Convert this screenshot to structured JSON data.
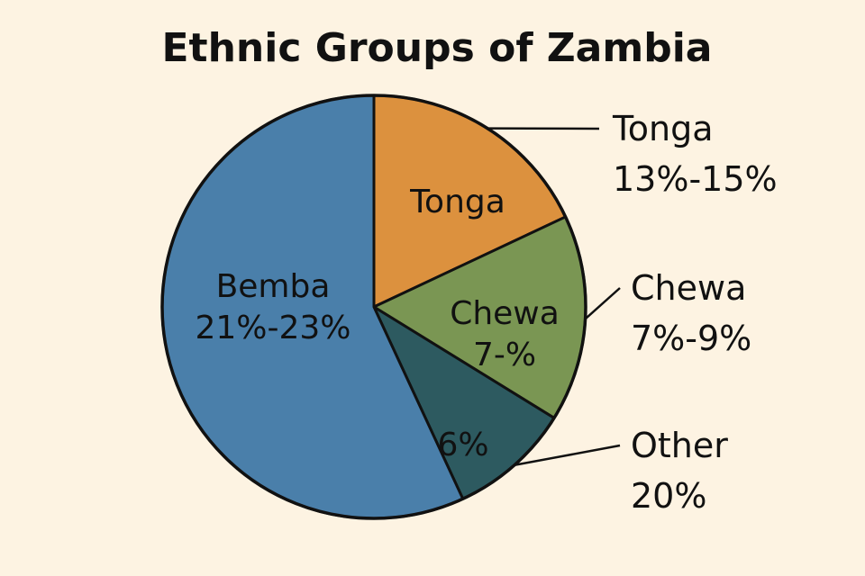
{
  "chart_data": {
    "type": "pie",
    "title": "Ethnic Groups of Zambia",
    "slices": [
      {
        "name": "Tonga",
        "share": 0.18,
        "color": "#dc913e",
        "inside_label": [
          "Tonga"
        ],
        "outside_label": [
          "Tonga",
          "13%-15%"
        ]
      },
      {
        "name": "Chewa",
        "share": 0.158,
        "color": "#7a9653",
        "inside_label": [
          "Chewa",
          "7-%"
        ],
        "outside_label": [
          "Chewa",
          "7%-9%"
        ]
      },
      {
        "name": "Other",
        "share": 0.093,
        "color": "#2d5a60",
        "inside_label": [
          "6%"
        ],
        "outside_label": [
          "Other",
          "20%"
        ]
      },
      {
        "name": "Bemba",
        "share": 0.569,
        "color": "#4a7faa",
        "inside_label": [
          "Bemba",
          "21%-23%"
        ],
        "outside_label": []
      }
    ],
    "legend": "none"
  }
}
